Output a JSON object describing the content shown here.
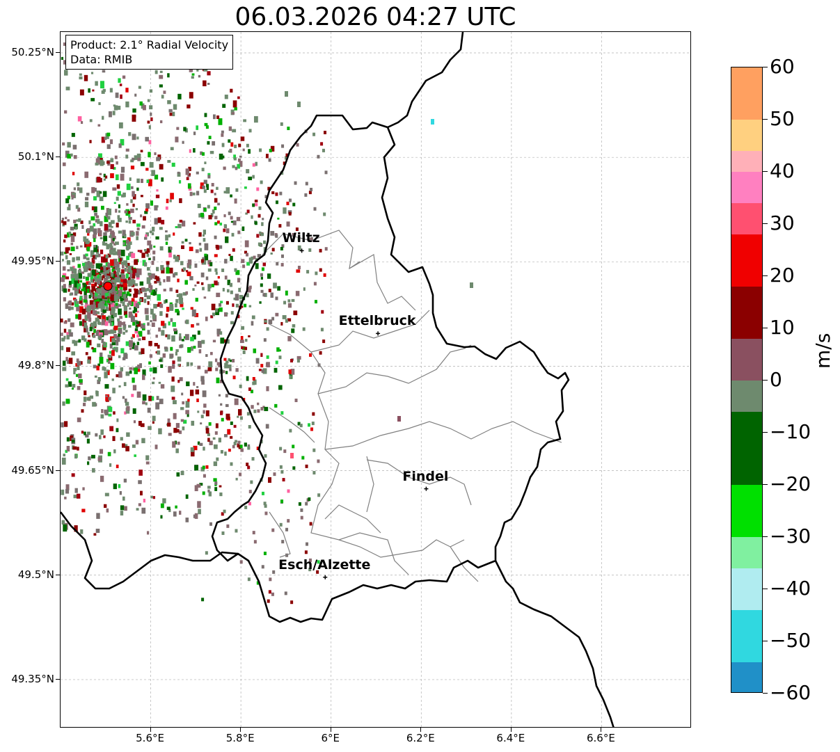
{
  "title": "06.03.2026 04:27 UTC",
  "info": {
    "product": "Product: 2.1° Radial Velocity",
    "data": "Data: RMIB"
  },
  "map": {
    "lon_range": [
      5.4,
      6.8
    ],
    "lat_range": [
      49.28,
      50.28
    ],
    "radar_site": {
      "lon": 5.505,
      "lat": 49.915
    },
    "cities": [
      {
        "name": "Wiltz",
        "lon": 5.935,
        "lat": 49.966
      },
      {
        "name": "Ettelbruck",
        "lon": 6.104,
        "lat": 49.847
      },
      {
        "name": "Findel",
        "lon": 6.211,
        "lat": 49.624
      },
      {
        "name": "Esch/Alzette",
        "lon": 5.987,
        "lat": 49.497
      }
    ],
    "y_ticks": [
      "50.25°N",
      "50.1°N",
      "49.95°N",
      "49.8°N",
      "49.65°N",
      "49.5°N",
      "49.35°N"
    ],
    "x_ticks": [
      "5.6°E",
      "5.8°E",
      "6°E",
      "6.2°E",
      "6.4°E",
      "6.6°E"
    ],
    "grid": true,
    "colors": {
      "border": "#000000",
      "cantons": "#808080",
      "gridline": "#b0b0b0",
      "radar_site": "#ff0000"
    }
  },
  "colorbar": {
    "unit": "m/s",
    "range": [
      -60,
      60
    ],
    "ticks": [
      "60",
      "50",
      "40",
      "30",
      "20",
      "10",
      "0",
      "−10",
      "−20",
      "−30",
      "−40",
      "−50",
      "−60"
    ],
    "stops": [
      {
        "from": 50,
        "to": 60,
        "color": "#ffa060"
      },
      {
        "from": 44,
        "to": 50,
        "color": "#ffd080"
      },
      {
        "from": 40,
        "to": 44,
        "color": "#ffb0b8"
      },
      {
        "from": 34,
        "to": 40,
        "color": "#ff80c0"
      },
      {
        "from": 28,
        "to": 34,
        "color": "#ff5070"
      },
      {
        "from": 18,
        "to": 28,
        "color": "#f00000"
      },
      {
        "from": 8,
        "to": 18,
        "color": "#8b0000"
      },
      {
        "from": 0,
        "to": 8,
        "color": "#8a5060"
      },
      {
        "from": -6,
        "to": 0,
        "color": "#6e8a6e"
      },
      {
        "from": -20,
        "to": -6,
        "color": "#006400"
      },
      {
        "from": -30,
        "to": -20,
        "color": "#00e000"
      },
      {
        "from": -36,
        "to": -30,
        "color": "#80f0a0"
      },
      {
        "from": -44,
        "to": -36,
        "color": "#b0ecf0"
      },
      {
        "from": -54,
        "to": -44,
        "color": "#30d8e0"
      },
      {
        "from": -60,
        "to": -54,
        "color": "#2090c8"
      }
    ]
  }
}
